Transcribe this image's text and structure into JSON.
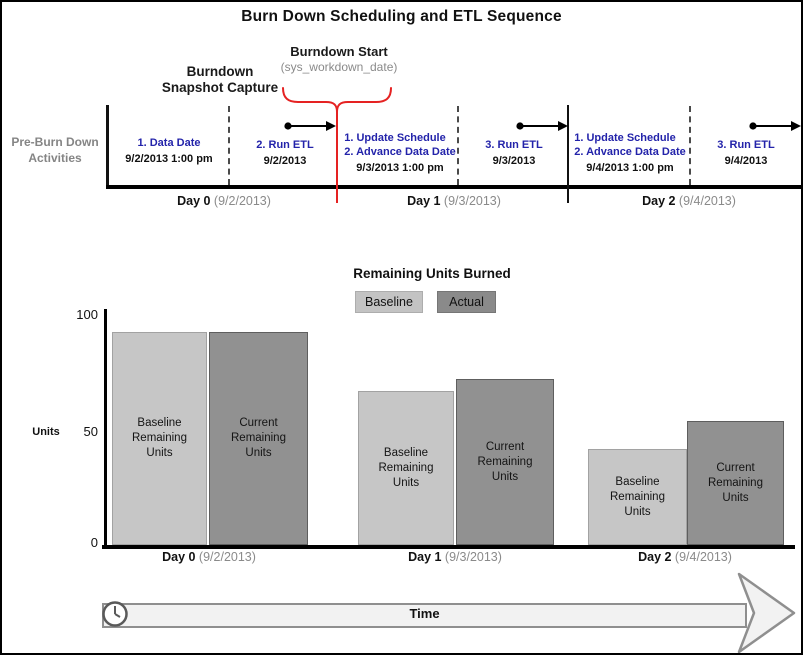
{
  "page": {
    "title": "Burn Down Scheduling and ETL Sequence"
  },
  "colors": {
    "event_text_blue": "#2323AA",
    "highlight_red": "#E52222",
    "muted_gray": "#8A8A8A",
    "bar_baseline_fill": "#C6C6C6",
    "bar_actual_fill": "#919191",
    "legend_baseline_fill": "#C3C3C3",
    "legend_actual_fill": "#8A8A8A"
  },
  "timeline": {
    "side_label": "Pre-Burn Down\nActivities",
    "snapshot_label": "Burndown\nSnapshot Capture",
    "burndown_start": {
      "title": "Burndown Start",
      "subtitle": "(sys_workdown_date)"
    },
    "events": [
      {
        "lines": [
          "1. Data Date"
        ],
        "date": "9/2/2013 1:00 pm"
      },
      {
        "lines": [
          "2. Run ETL"
        ],
        "date": "9/2/2013"
      },
      {
        "lines": [
          "1. Update Schedule",
          "2. Advance Data Date"
        ],
        "date": "9/3/2013 1:00 pm"
      },
      {
        "lines": [
          "3. Run ETL"
        ],
        "date": "9/3/2013"
      },
      {
        "lines": [
          "1. Update Schedule",
          "2. Advance Data Date"
        ],
        "date": "9/4/2013 1:00 pm"
      },
      {
        "lines": [
          "3. Run ETL"
        ],
        "date": "9/4/2013"
      }
    ]
  },
  "days": [
    {
      "label": "Day 0",
      "date": "(9/2/2013)"
    },
    {
      "label": "Day 1",
      "date": "(9/3/2013)"
    },
    {
      "label": "Day 2",
      "date": "(9/4/2013)"
    }
  ],
  "chart": {
    "bar_labels": {
      "baseline": "Baseline\nRemaining\nUnits",
      "actual": "Current\nRemaining\nUnits"
    }
  },
  "chart_data": {
    "type": "bar",
    "title": "Remaining Units Burned",
    "categories": [
      "Day 0 (9/2/2013)",
      "Day 1 (9/3/2013)",
      "Day 2 (9/4/2013)"
    ],
    "series": [
      {
        "name": "Baseline",
        "values": [
          90,
          65,
          40
        ]
      },
      {
        "name": "Actual",
        "values": [
          90,
          70,
          52
        ]
      }
    ],
    "ylabel": "Units",
    "yticks": [
      0,
      50,
      100
    ],
    "ylim": [
      0,
      100
    ],
    "legend_position": "top",
    "grid": false
  },
  "footer": {
    "time_label": "Time"
  }
}
